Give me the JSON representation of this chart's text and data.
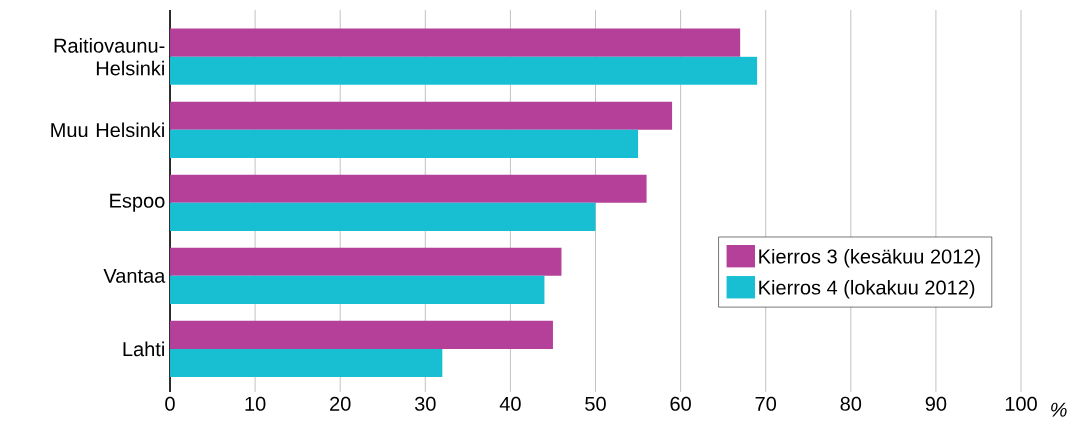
{
  "chart_data": {
    "type": "bar",
    "orientation": "horizontal",
    "categories": [
      "Raitiovaunu-Helsinki",
      "Muu Helsinki",
      "Espoo",
      "Vantaa",
      "Lahti"
    ],
    "series": [
      {
        "name": "Kierros 3 (kesäkuu 2012)",
        "color": "#b5409a",
        "values": [
          67,
          59,
          56,
          46,
          45
        ]
      },
      {
        "name": "Kierros 4 (lokakuu 2012)",
        "color": "#18bed2",
        "values": [
          69,
          55,
          50,
          44,
          32
        ]
      }
    ],
    "xlabel": "%",
    "xlim": [
      0,
      100
    ],
    "xticks": [
      0,
      10,
      20,
      30,
      40,
      50,
      60,
      70,
      80,
      90,
      100
    ],
    "grid": "x",
    "legend": "right"
  }
}
